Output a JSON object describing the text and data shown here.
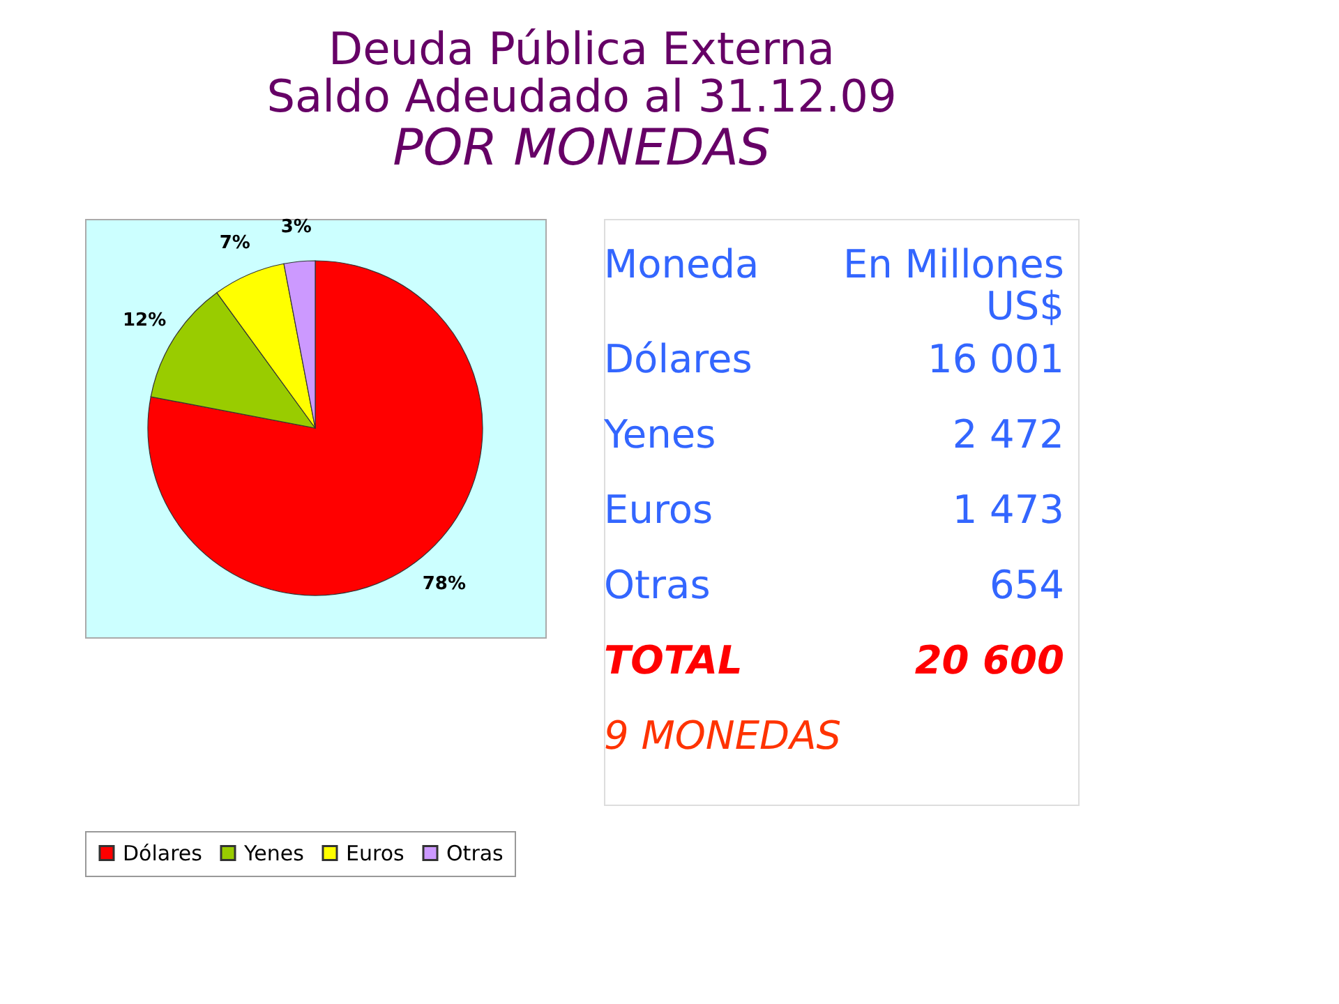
{
  "chart_data": [
    {
      "type": "pie",
      "title": "Deuda Pública Externa\nSaldo Adeudado al 31.12.09",
      "subtitle": "POR MONEDAS",
      "categories": [
        "Dólares",
        "Yenes",
        "Euros",
        "Otras"
      ],
      "values": [
        78,
        12,
        7,
        3
      ],
      "value_labels": [
        "78%",
        "12%",
        "7%",
        "3%"
      ],
      "colors": [
        "#ff0000",
        "#99cc00",
        "#ffff00",
        "#cc99ff"
      ],
      "legend": "bottom"
    },
    {
      "type": "other",
      "annotations": [
        "Moneda",
        "En Millones\nUS$",
        "Dólares",
        "16 001",
        "Yenes",
        "2 472",
        "Euros",
        "1 473",
        "Otras",
        "654",
        "TOTAL",
        "20 600",
        "9  MONEDAS"
      ]
    }
  ]
}
